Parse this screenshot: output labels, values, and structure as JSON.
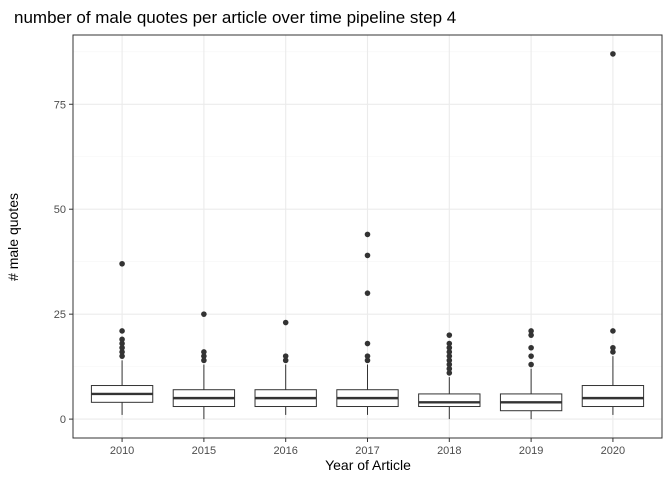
{
  "chart_data": {
    "type": "boxplot",
    "title": "number of male quotes per article over time pipeline step 4",
    "xlabel": "Year of Article",
    "ylabel": "# male quotes",
    "ylim": [
      -4.5,
      91.5
    ],
    "yticks": [
      0,
      25,
      50,
      75
    ],
    "grid": true,
    "legend": "none",
    "categories": [
      "2010",
      "2015",
      "2016",
      "2017",
      "2018",
      "2019",
      "2020"
    ],
    "boxes": [
      {
        "x": "2010",
        "min": 1,
        "q1": 4,
        "median": 6,
        "q3": 8,
        "max": 14,
        "outliers": [
          15,
          16,
          17,
          18,
          19,
          21,
          37
        ]
      },
      {
        "x": "2015",
        "min": 0,
        "q1": 3,
        "median": 5,
        "q3": 7,
        "max": 13,
        "outliers": [
          14,
          15,
          16,
          25
        ]
      },
      {
        "x": "2016",
        "min": 1,
        "q1": 3,
        "median": 5,
        "q3": 7,
        "max": 13,
        "outliers": [
          14,
          15,
          23
        ]
      },
      {
        "x": "2017",
        "min": 1,
        "q1": 3,
        "median": 5,
        "q3": 7,
        "max": 13,
        "outliers": [
          14,
          15,
          18,
          30,
          39,
          44
        ]
      },
      {
        "x": "2018",
        "min": 0,
        "q1": 3,
        "median": 4,
        "q3": 6,
        "max": 10,
        "outliers": [
          11,
          12,
          13,
          14,
          15,
          16,
          17,
          18,
          20
        ]
      },
      {
        "x": "2019",
        "min": 0,
        "q1": 2,
        "median": 4,
        "q3": 6,
        "max": 12,
        "outliers": [
          13,
          15,
          17,
          20,
          21
        ]
      },
      {
        "x": "2020",
        "min": 1,
        "q1": 3,
        "median": 5,
        "q3": 8,
        "max": 15,
        "outliers": [
          16,
          17,
          21,
          87
        ]
      }
    ],
    "colors": {
      "panel_border": "#333333",
      "grid_major": "#ebebeb",
      "grid_minor": "#f5f5f5",
      "box_stroke": "#333333",
      "box_fill": "#ffffff",
      "outlier": "#333333"
    }
  }
}
